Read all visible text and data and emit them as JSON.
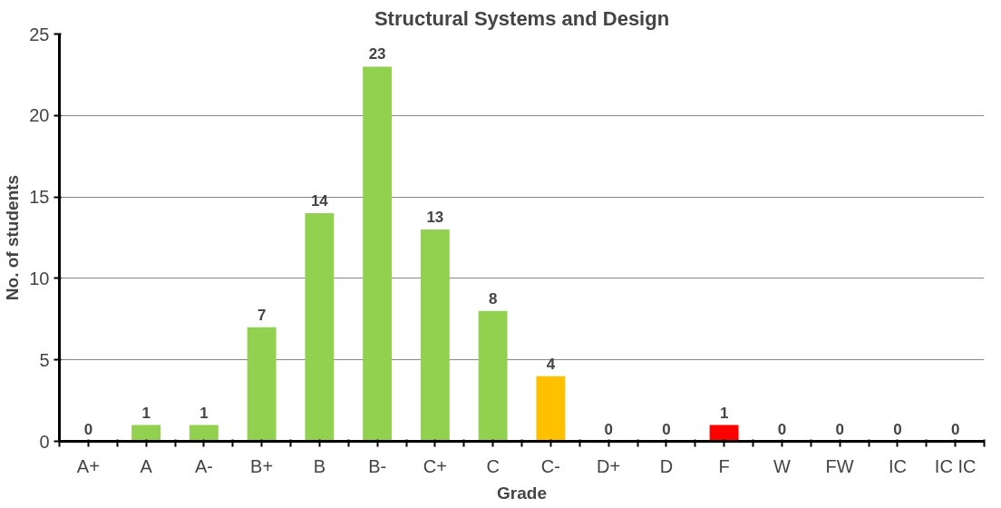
{
  "chart_data": {
    "type": "bar",
    "title": "Structural Systems and Design",
    "xlabel": "Grade",
    "ylabel": "No. of students",
    "categories": [
      "A+",
      "A",
      "A-",
      "B+",
      "B",
      "B-",
      "C+",
      "C",
      "C-",
      "D+",
      "D",
      "F",
      "W",
      "FW",
      "IC",
      "IC IC"
    ],
    "values": [
      0,
      1,
      1,
      7,
      14,
      23,
      13,
      8,
      4,
      0,
      0,
      1,
      0,
      0,
      0,
      0
    ],
    "colors": [
      "#92d050",
      "#92d050",
      "#92d050",
      "#92d050",
      "#92d050",
      "#92d050",
      "#92d050",
      "#92d050",
      "#ffc000",
      "#92d050",
      "#92d050",
      "#ff0000",
      "#92d050",
      "#92d050",
      "#92d050",
      "#92d050"
    ],
    "ylim": [
      0,
      25
    ],
    "yticks": [
      0,
      5,
      10,
      15,
      20,
      25
    ],
    "grid": "y",
    "data_labels": true
  }
}
